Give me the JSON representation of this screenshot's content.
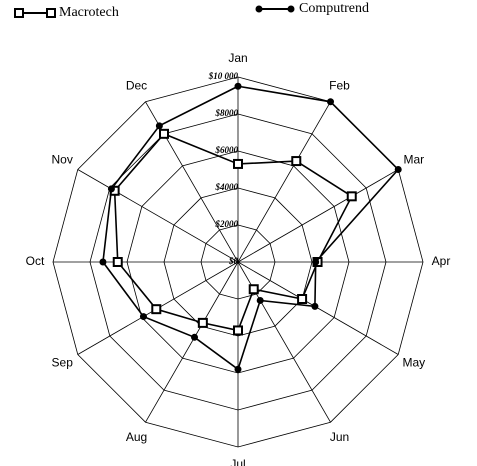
{
  "chart_data": {
    "type": "radar",
    "categories": [
      "Jan",
      "Feb",
      "Mar",
      "Apr",
      "May",
      "Jun",
      "Jul",
      "Aug",
      "Sep",
      "Oct",
      "Nov",
      "Dec"
    ],
    "series": [
      {
        "name": "Macrotech",
        "color": "#000000",
        "marker": "square",
        "values": [
          5300,
          6300,
          7100,
          4300,
          4000,
          1700,
          3700,
          3800,
          5100,
          6500,
          7700,
          8000
        ]
      },
      {
        "name": "Computrend",
        "color": "#000000",
        "marker": "circle",
        "values": [
          9500,
          10000,
          10000,
          4200,
          4800,
          2400,
          5800,
          4700,
          5900,
          7300,
          7900,
          8500
        ]
      }
    ],
    "ylim": [
      0,
      10000
    ],
    "yticks": [
      {
        "value": 0,
        "label": "$0"
      },
      {
        "value": 2000,
        "label": "$2000"
      },
      {
        "value": 4000,
        "label": "$4000"
      },
      {
        "value": 6000,
        "label": "$6000"
      },
      {
        "value": 8000,
        "label": "$8000"
      },
      {
        "value": 10000,
        "label": "$10 000"
      }
    ],
    "grid": true
  }
}
